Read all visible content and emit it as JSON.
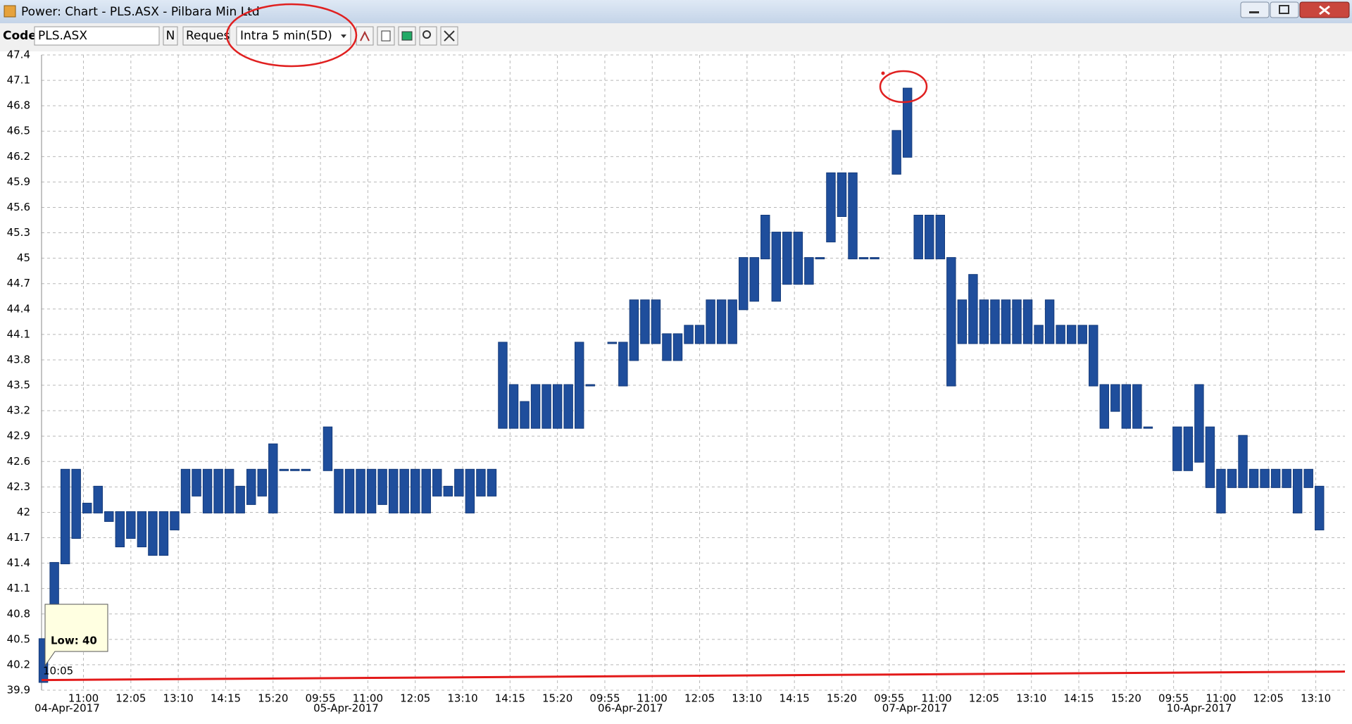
{
  "window": {
    "title": "Power: Chart - PLS.ASX - Pilbara Min Ltd"
  },
  "toolbar": {
    "code_label": "Code:",
    "code": "PLS.ASX",
    "n_button": "N",
    "request_button": "Reques",
    "interval": "Intra 5 min(5D)"
  },
  "chart_data": {
    "type": "range",
    "color": "#1f4e9c",
    "x": [
      2,
      5,
      8,
      11,
      14,
      17,
      20,
      23,
      26,
      29,
      32,
      35,
      38,
      41,
      44,
      47,
      50,
      53,
      56,
      59,
      62,
      65,
      68,
      71,
      74,
      80,
      83,
      86,
      89,
      92,
      95,
      98,
      101,
      104,
      107,
      110,
      113,
      116,
      119,
      122,
      125,
      128,
      131,
      134,
      137,
      140,
      143,
      146,
      149,
      152,
      158,
      161,
      164,
      167,
      170,
      173,
      176,
      179,
      182,
      185,
      188,
      191,
      194,
      197,
      200,
      203,
      206,
      209,
      212,
      215,
      218,
      221,
      224,
      227,
      230,
      236,
      239,
      242,
      245,
      248,
      251,
      254,
      257,
      260,
      263,
      266,
      269,
      272,
      275,
      278,
      281,
      284,
      287,
      290,
      293,
      296,
      299,
      302,
      305,
      313,
      316,
      319,
      322,
      325,
      328,
      331,
      334,
      337,
      340,
      343,
      346,
      349,
      352
    ],
    "low": [
      40.0,
      40.8,
      41.4,
      41.7,
      42.0,
      42.0,
      41.9,
      41.6,
      41.7,
      41.6,
      41.5,
      41.5,
      41.8,
      42.0,
      42.2,
      42.0,
      42.0,
      42.0,
      42.0,
      42.1,
      42.2,
      42.0,
      42.5,
      42.5,
      42.5,
      42.5,
      42.0,
      42.0,
      42.0,
      42.0,
      42.1,
      42.0,
      42.0,
      42.0,
      42.0,
      42.2,
      42.2,
      42.2,
      42.0,
      42.2,
      42.2,
      43.0,
      43.0,
      43.0,
      43.0,
      43.0,
      43.0,
      43.0,
      43.0,
      43.5,
      44.0,
      43.5,
      43.8,
      44.0,
      44.0,
      43.8,
      43.8,
      44.0,
      44.0,
      44.0,
      44.0,
      44.0,
      44.4,
      44.5,
      45.0,
      44.5,
      44.7,
      44.7,
      44.7,
      45.0,
      45.2,
      45.5,
      45.0,
      45.0,
      45.0,
      46.0,
      46.2,
      45.0,
      45.0,
      45.0,
      43.5,
      44.0,
      44.0,
      44.0,
      44.0,
      44.0,
      44.0,
      44.0,
      44.0,
      44.0,
      44.0,
      44.0,
      44.0,
      43.5,
      43.0,
      43.2,
      43.0,
      43.0,
      43.0,
      42.5,
      42.5,
      42.6,
      42.3,
      42.0,
      42.3,
      42.3,
      42.3,
      42.3,
      42.3,
      42.3,
      42.0,
      42.3,
      41.8
    ],
    "high": [
      40.5,
      41.4,
      42.5,
      42.5,
      42.1,
      42.3,
      42.0,
      42.0,
      42.0,
      42.0,
      42.0,
      42.0,
      42.0,
      42.5,
      42.5,
      42.5,
      42.5,
      42.5,
      42.3,
      42.5,
      42.5,
      42.8,
      42.5,
      42.5,
      42.5,
      43.0,
      42.5,
      42.5,
      42.5,
      42.5,
      42.5,
      42.5,
      42.5,
      42.5,
      42.5,
      42.5,
      42.3,
      42.5,
      42.5,
      42.5,
      42.5,
      44.0,
      43.5,
      43.3,
      43.5,
      43.5,
      43.5,
      43.5,
      44.0,
      43.5,
      44.0,
      44.0,
      44.5,
      44.5,
      44.5,
      44.1,
      44.1,
      44.2,
      44.2,
      44.5,
      44.5,
      44.5,
      45.0,
      45.0,
      45.5,
      45.3,
      45.3,
      45.3,
      45.0,
      45.0,
      46.0,
      46.0,
      46.0,
      45.0,
      45.0,
      46.5,
      47.0,
      45.5,
      45.5,
      45.5,
      45.0,
      44.5,
      44.8,
      44.5,
      44.5,
      44.5,
      44.5,
      44.5,
      44.2,
      44.5,
      44.2,
      44.2,
      44.2,
      44.2,
      43.5,
      43.5,
      43.5,
      43.5,
      43.0,
      43.0,
      43.0,
      43.5,
      43.0,
      42.5,
      42.5,
      42.9,
      42.5,
      42.5,
      42.5,
      42.5,
      42.5,
      42.5,
      42.3
    ],
    "line": {
      "color": "#e31a1a",
      "x": [
        1.5,
        359
      ],
      "values": [
        40.02,
        40.12
      ]
    },
    "xlim": [
      1.5,
      359
    ],
    "ylim": [
      39.9,
      47.4
    ],
    "yticks": [
      39.9,
      40.2,
      40.5,
      40.8,
      41.1,
      41.4,
      41.7,
      42,
      42.3,
      42.6,
      42.9,
      43.2,
      43.5,
      43.8,
      44.1,
      44.4,
      44.7,
      45,
      45.3,
      45.6,
      45.9,
      46.2,
      46.5,
      46.8,
      47.1,
      47.4
    ],
    "xticks": [
      {
        "value": 13,
        "label": "11:00"
      },
      {
        "value": 26,
        "label": "12:05"
      },
      {
        "value": 39,
        "label": "13:10"
      },
      {
        "value": 52,
        "label": "14:15"
      },
      {
        "value": 65,
        "label": "15:20"
      },
      {
        "value": 78,
        "label": "09:55"
      },
      {
        "value": 91,
        "label": "11:00"
      },
      {
        "value": 104,
        "label": "12:05"
      },
      {
        "value": 117,
        "label": "13:10"
      },
      {
        "value": 130,
        "label": "14:15"
      },
      {
        "value": 143,
        "label": "15:20"
      },
      {
        "value": 156,
        "label": "09:55"
      },
      {
        "value": 169,
        "label": "11:00"
      },
      {
        "value": 182,
        "label": "12:05"
      },
      {
        "value": 195,
        "label": "13:10"
      },
      {
        "value": 208,
        "label": "14:15"
      },
      {
        "value": 221,
        "label": "15:20"
      },
      {
        "value": 234,
        "label": "09:55"
      },
      {
        "value": 247,
        "label": "11:00"
      },
      {
        "value": 260,
        "label": "12:05"
      },
      {
        "value": 273,
        "label": "13:10"
      },
      {
        "value": 286,
        "label": "14:15"
      },
      {
        "value": 299,
        "label": "15:20"
      },
      {
        "value": 312,
        "label": "09:55"
      },
      {
        "value": 325,
        "label": "11:00"
      },
      {
        "value": 338,
        "label": "12:05"
      },
      {
        "value": 351,
        "label": "13:10"
      }
    ],
    "date_labels": [
      {
        "value": 1.5,
        "label": "04-Apr-2017"
      },
      {
        "value": 78,
        "label": "05-Apr-2017"
      },
      {
        "value": 156,
        "label": "06-Apr-2017"
      },
      {
        "value": 234,
        "label": "07-Apr-2017"
      },
      {
        "value": 312,
        "label": "10-Apr-2017"
      }
    ],
    "grid": true,
    "tooltip": {
      "label": "Low: 40",
      "time": "10:05"
    }
  }
}
